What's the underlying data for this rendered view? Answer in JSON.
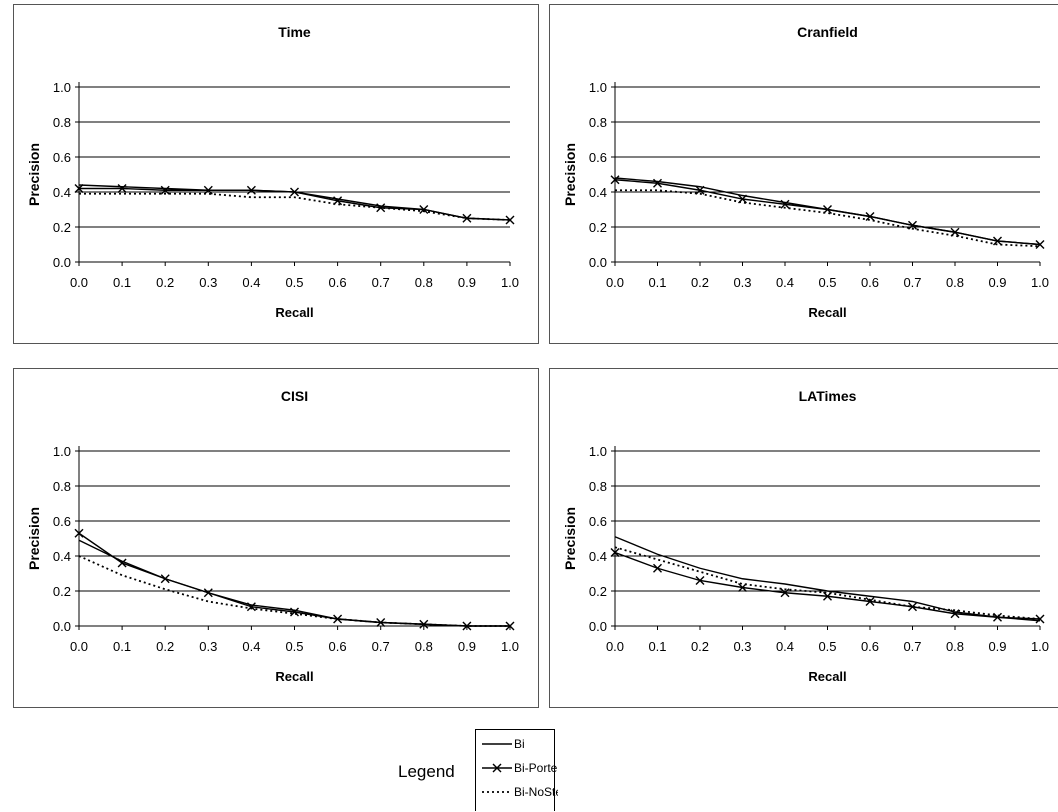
{
  "chart_data": [
    {
      "type": "line",
      "title": "Time",
      "xlabel": "Recall",
      "ylabel": "Precision",
      "ylim": [
        0,
        1
      ],
      "x": [
        0.0,
        0.1,
        0.2,
        0.3,
        0.4,
        0.5,
        0.6,
        0.7,
        0.8,
        0.9,
        1.0
      ],
      "series": [
        {
          "name": "Bi",
          "style": "solid",
          "values": [
            0.44,
            0.43,
            0.42,
            0.41,
            0.41,
            0.4,
            0.36,
            0.32,
            0.3,
            0.25,
            0.24
          ]
        },
        {
          "name": "Bi-Porter",
          "style": "cross",
          "values": [
            0.42,
            0.42,
            0.41,
            0.41,
            0.41,
            0.4,
            0.35,
            0.31,
            0.3,
            0.25,
            0.24
          ]
        },
        {
          "name": "Bi-NoStem",
          "style": "dotted",
          "values": [
            0.39,
            0.39,
            0.39,
            0.39,
            0.37,
            0.37,
            0.33,
            0.31,
            0.29,
            0.25,
            0.24
          ]
        }
      ]
    },
    {
      "type": "line",
      "title": "Cranfield",
      "xlabel": "Recall",
      "ylabel": "Precision",
      "ylim": [
        0,
        1
      ],
      "x": [
        0.0,
        0.1,
        0.2,
        0.3,
        0.4,
        0.5,
        0.6,
        0.7,
        0.8,
        0.9,
        1.0
      ],
      "series": [
        {
          "name": "Bi",
          "style": "solid",
          "values": [
            0.48,
            0.46,
            0.43,
            0.38,
            0.34,
            0.3,
            0.26,
            0.21,
            0.17,
            0.12,
            0.1
          ]
        },
        {
          "name": "Bi-Porter",
          "style": "cross",
          "values": [
            0.47,
            0.45,
            0.41,
            0.36,
            0.33,
            0.3,
            0.26,
            0.21,
            0.17,
            0.12,
            0.1
          ]
        },
        {
          "name": "Bi-NoStem",
          "style": "dotted",
          "values": [
            0.41,
            0.41,
            0.39,
            0.34,
            0.31,
            0.28,
            0.24,
            0.19,
            0.15,
            0.1,
            0.09
          ]
        }
      ]
    },
    {
      "type": "line",
      "title": "CISI",
      "xlabel": "Recall",
      "ylabel": "Precision",
      "ylim": [
        0,
        1
      ],
      "x": [
        0.0,
        0.1,
        0.2,
        0.3,
        0.4,
        0.5,
        0.6,
        0.7,
        0.8,
        0.9,
        1.0
      ],
      "series": [
        {
          "name": "Bi",
          "style": "solid",
          "values": [
            0.49,
            0.37,
            0.27,
            0.19,
            0.12,
            0.09,
            0.04,
            0.02,
            0.01,
            0.0,
            0.0
          ]
        },
        {
          "name": "Bi-Porter",
          "style": "cross",
          "values": [
            0.53,
            0.36,
            0.27,
            0.19,
            0.11,
            0.08,
            0.04,
            0.02,
            0.01,
            0.0,
            0.0
          ]
        },
        {
          "name": "Bi-NoStem",
          "style": "dotted",
          "values": [
            0.4,
            0.29,
            0.21,
            0.14,
            0.1,
            0.07,
            0.04,
            0.02,
            0.01,
            0.0,
            0.0
          ]
        }
      ]
    },
    {
      "type": "line",
      "title": "LATimes",
      "xlabel": "Recall",
      "ylabel": "Precision",
      "ylim": [
        0,
        1
      ],
      "x": [
        0.0,
        0.1,
        0.2,
        0.3,
        0.4,
        0.5,
        0.6,
        0.7,
        0.8,
        0.9,
        1.0
      ],
      "series": [
        {
          "name": "Bi",
          "style": "solid",
          "values": [
            0.51,
            0.41,
            0.33,
            0.27,
            0.24,
            0.2,
            0.17,
            0.14,
            0.08,
            0.05,
            0.03
          ]
        },
        {
          "name": "Bi-Porter",
          "style": "cross",
          "values": [
            0.42,
            0.33,
            0.26,
            0.22,
            0.19,
            0.17,
            0.14,
            0.11,
            0.07,
            0.05,
            0.04
          ]
        },
        {
          "name": "Bi-NoStem",
          "style": "dotted",
          "values": [
            0.45,
            0.38,
            0.31,
            0.24,
            0.21,
            0.19,
            0.15,
            0.11,
            0.09,
            0.06,
            0.04
          ]
        }
      ]
    }
  ],
  "legend": {
    "label": "Legend",
    "entries": [
      "Bi",
      "Bi-Porter",
      "Bi-NoStem"
    ]
  },
  "x_ticks": [
    "0.0",
    "0.1",
    "0.2",
    "0.3",
    "0.4",
    "0.5",
    "0.6",
    "0.7",
    "0.8",
    "0.9",
    "1.0"
  ],
  "y_ticks": [
    "0.0",
    "0.2",
    "0.4",
    "0.6",
    "0.8",
    "1.0"
  ]
}
